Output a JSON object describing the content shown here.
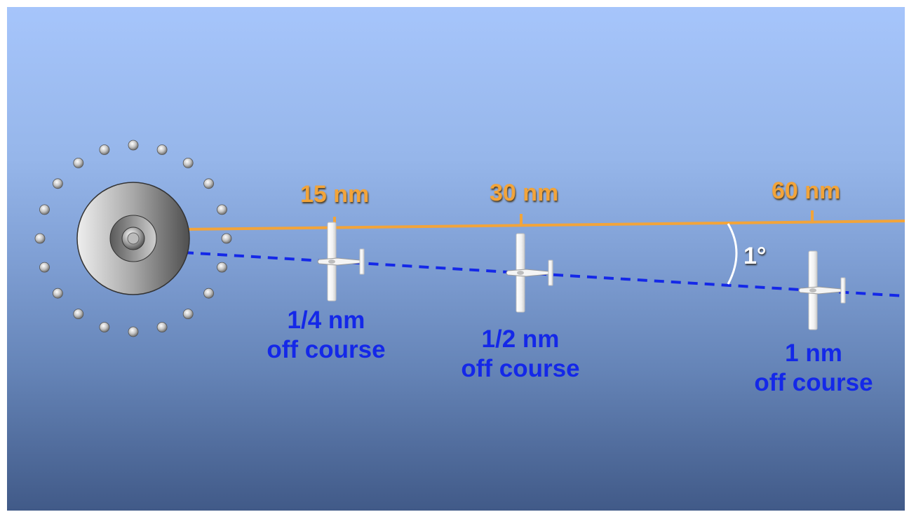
{
  "distances": [
    "15 nm",
    "30 nm",
    "60 nm"
  ],
  "offsets": [
    {
      "line1": "1/4 nm",
      "line2": "off course"
    },
    {
      "line1": "1/2 nm",
      "line2": "off course"
    },
    {
      "line1": "1 nm",
      "line2": "off course"
    }
  ],
  "angle": "1°",
  "colors": {
    "course_line": "#f2a43a",
    "offcourse_line": "#1428e8",
    "offcourse_text": "#1428e8",
    "distance_text": "#f2a43a"
  },
  "icons": {
    "station": "vor-station-icon",
    "aircraft": "airplane-icon"
  }
}
